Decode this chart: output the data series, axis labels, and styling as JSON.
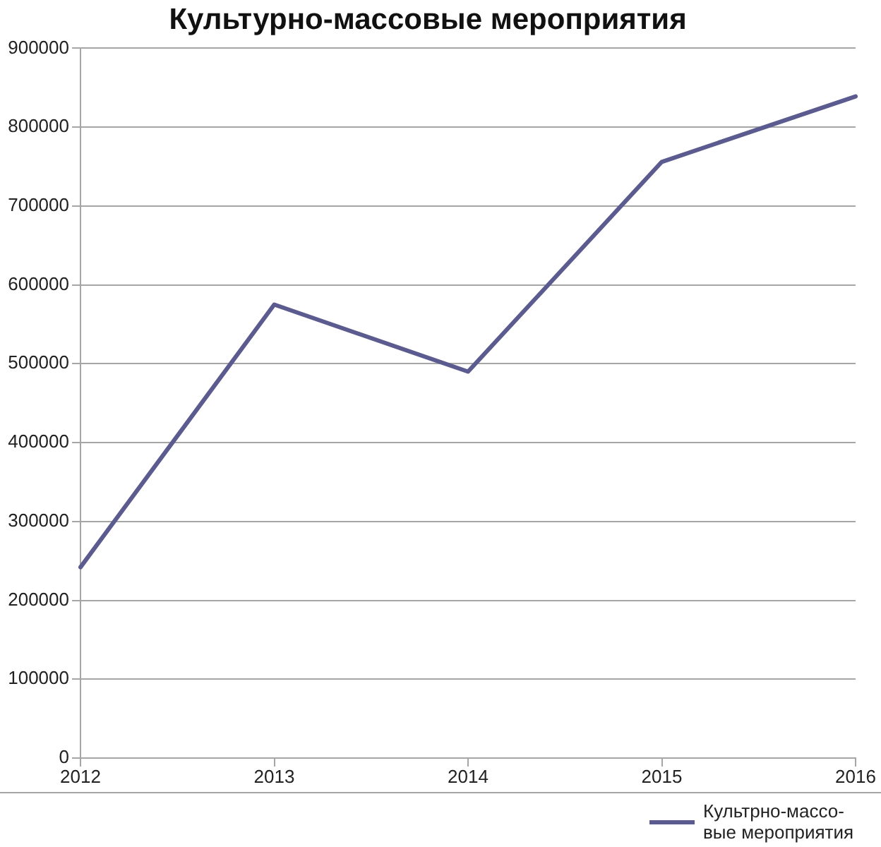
{
  "chart_data": {
    "type": "line",
    "title": "Культурно-массовые мероприятия",
    "categories": [
      "2012",
      "2013",
      "2014",
      "2015",
      "2016"
    ],
    "series": [
      {
        "name": "Культрно-массо-вые мероприятия",
        "color": "#5c5b8f",
        "values": [
          242000,
          575000,
          490000,
          756000,
          839000
        ]
      }
    ],
    "ylim": [
      0,
      900000
    ],
    "yticks": [
      0,
      100000,
      200000,
      300000,
      400000,
      500000,
      600000,
      700000,
      800000,
      900000
    ],
    "grid": "y",
    "legend": "bottom right",
    "marker": "none",
    "line_style": "solid"
  }
}
